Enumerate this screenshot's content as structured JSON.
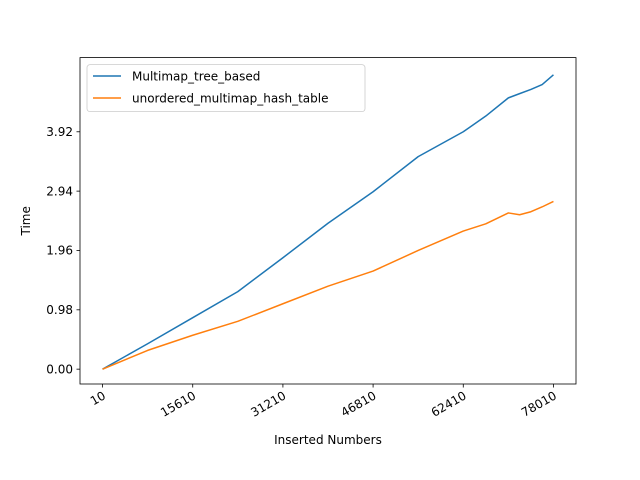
{
  "chart_data": {
    "type": "line",
    "title": "",
    "xlabel": "Inserted Numbers",
    "ylabel": "Time",
    "xlim": [
      10,
      78010
    ],
    "ylim": [
      0.0,
      4.9
    ],
    "x_ticks": [
      10,
      15610,
      31210,
      46810,
      62410,
      78010
    ],
    "x_tick_labels": [
      "10",
      "15610",
      "31210",
      "46810",
      "62410",
      "78010"
    ],
    "y_ticks": [
      0.0,
      0.98,
      1.96,
      2.94,
      3.92
    ],
    "y_tick_labels": [
      "0.00",
      "0.98",
      "1.96",
      "2.94",
      "3.92"
    ],
    "grid": false,
    "legend_position": "upper-left",
    "x": [
      10,
      7810,
      15610,
      23410,
      31210,
      39010,
      46810,
      54610,
      62410,
      66310,
      70210,
      72160,
      74110,
      76060,
      78010
    ],
    "series": [
      {
        "name": "Multimap_tree_based",
        "color": "#1f77b4",
        "values": [
          0.0,
          0.42,
          0.85,
          1.28,
          1.84,
          2.41,
          2.93,
          3.51,
          3.92,
          4.18,
          4.48,
          4.55,
          4.62,
          4.7,
          4.86
        ]
      },
      {
        "name": "unordered_multimap_hash_table",
        "color": "#ff7f0e",
        "values": [
          0.0,
          0.31,
          0.56,
          0.79,
          1.08,
          1.37,
          1.62,
          1.96,
          2.28,
          2.4,
          2.58,
          2.55,
          2.6,
          2.68,
          2.77
        ]
      }
    ]
  }
}
